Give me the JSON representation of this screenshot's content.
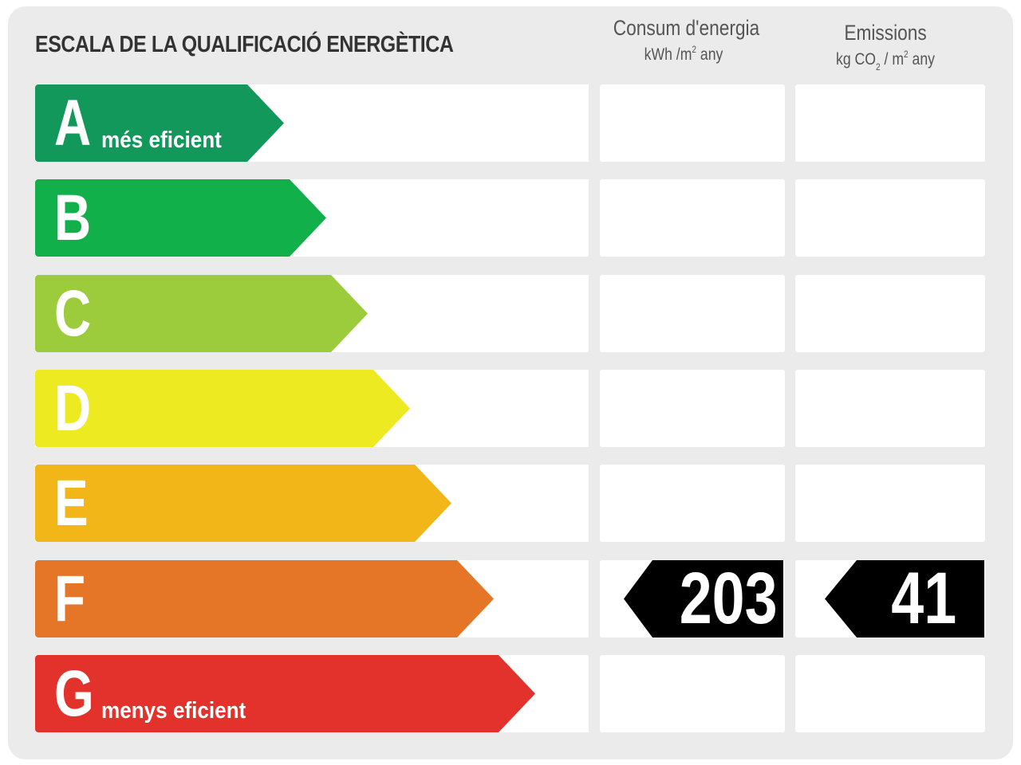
{
  "title": "ESCALA DE LA QUALIFICACIÓ ENERGÈTICA",
  "columns": {
    "energy": {
      "title": "Consum d'energia",
      "unit_pre": "kWh /m",
      "unit_sup": "2",
      "unit_post": " any"
    },
    "emissions": {
      "title": "Emissions",
      "unit_pre": "kg CO",
      "unit_sub": "2",
      "unit_mid": " / m",
      "unit_sup": "2",
      "unit_post": " any"
    }
  },
  "classes": [
    {
      "letter": "A",
      "label": "més eficient",
      "color": "#12985a"
    },
    {
      "letter": "B",
      "label": "",
      "color": "#11b04b"
    },
    {
      "letter": "C",
      "label": "",
      "color": "#9ccb3b"
    },
    {
      "letter": "D",
      "label": "",
      "color": "#eeea22"
    },
    {
      "letter": "E",
      "label": "",
      "color": "#f2b619"
    },
    {
      "letter": "F",
      "label": "",
      "color": "#e57628"
    },
    {
      "letter": "G",
      "label": "menys eficient",
      "color": "#e3312c"
    }
  ],
  "rating": {
    "class": "F",
    "energy_value": "203",
    "emissions_value": "41"
  }
}
